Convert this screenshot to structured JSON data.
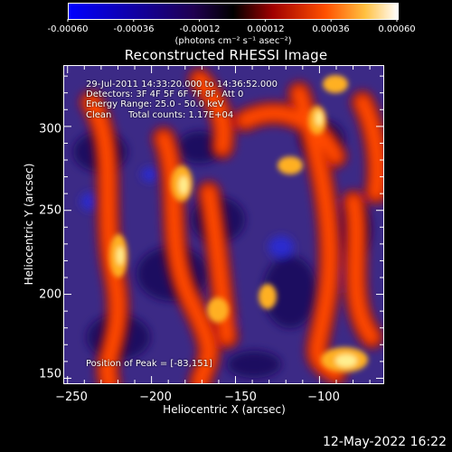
{
  "colorbar": {
    "tick_labels": [
      "-0.00060",
      "-0.00036",
      "-0.00012",
      "0.00012",
      "0.00036",
      "0.00060"
    ],
    "units": "(photons cm⁻² s⁻¹ asec⁻²)",
    "colors": [
      "#0000ff",
      "#000000",
      "#c00000",
      "#ff8000",
      "#ffffff"
    ]
  },
  "title": "Reconstructed RHESSI Image",
  "info": {
    "time_range": "29-Jul-2011 14:33:20.000 to 14:36:52.000",
    "detectors": "Detectors: 3F 4F 5F 6F 7F 8F, Att 0",
    "energy_range": "Energy Range: 25.0 - 50.0 keV",
    "algorithm": "Clean",
    "total_counts": "Total counts: 1.17E+04"
  },
  "peak": "Position of Peak = [-83,151]",
  "chart_data": {
    "type": "heatmap",
    "title": "Reconstructed RHESSI Image",
    "xlabel": "Heliocentric X (arcsec)",
    "ylabel": "Heliocentric Y (arcsec)",
    "xlim": [
      -252,
      -62
    ],
    "ylim": [
      147,
      336
    ],
    "x_ticks": [
      -250,
      -200,
      -150,
      -100
    ],
    "x_tick_labels": [
      "−250",
      "−200",
      "−150",
      "−100"
    ],
    "y_ticks": [
      150,
      200,
      250,
      300
    ],
    "y_tick_labels": [
      "150",
      "200",
      "250",
      "300"
    ],
    "value_range": [
      -0.0006,
      0.0006
    ],
    "peak_position": [
      -83,
      151
    ]
  },
  "timestamp": "12-May-2022 16:22"
}
